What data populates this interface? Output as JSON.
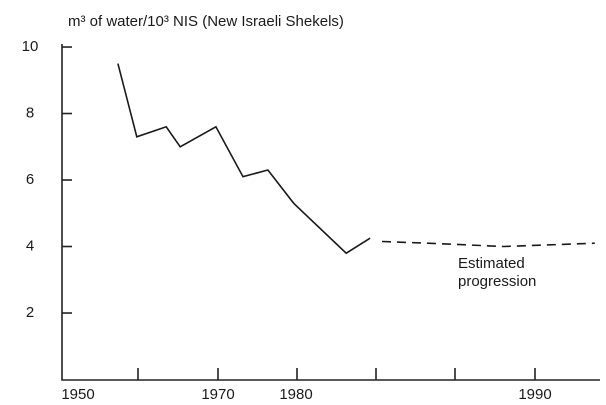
{
  "chart_data": {
    "type": "line",
    "y_axis_title": "m³ of water/10³ NIS (New Israeli Shekels)",
    "annotation": [
      "Estimated",
      "progression"
    ],
    "xlim": [
      1947.7,
      1992.7
    ],
    "xticks": [
      1950,
      1970,
      1980,
      1990
    ],
    "ylim": [
      0,
      10.1
    ],
    "yticks": [
      2,
      4,
      6,
      8,
      10
    ],
    "series": [
      {
        "color": "#1a1a1a",
        "linestyle": "solid",
        "x": [
          1955.7,
          1958.4,
          1962.6,
          1964.6,
          1969.7,
          1973.2,
          1976.4,
          1979.7,
          1982.1,
          1983.1
        ],
        "values": [
          9.5,
          7.3,
          7.6,
          7.0,
          7.6,
          6.1,
          6.3,
          5.3,
          3.8,
          4.25
        ]
      },
      {
        "color": "#1a1a1a",
        "linestyle": "dashed",
        "x": [
          1983.6,
          1985.5,
          1988.7,
          1992.5
        ],
        "values": [
          4.15,
          4.1,
          4.0,
          4.1
        ]
      }
    ]
  }
}
